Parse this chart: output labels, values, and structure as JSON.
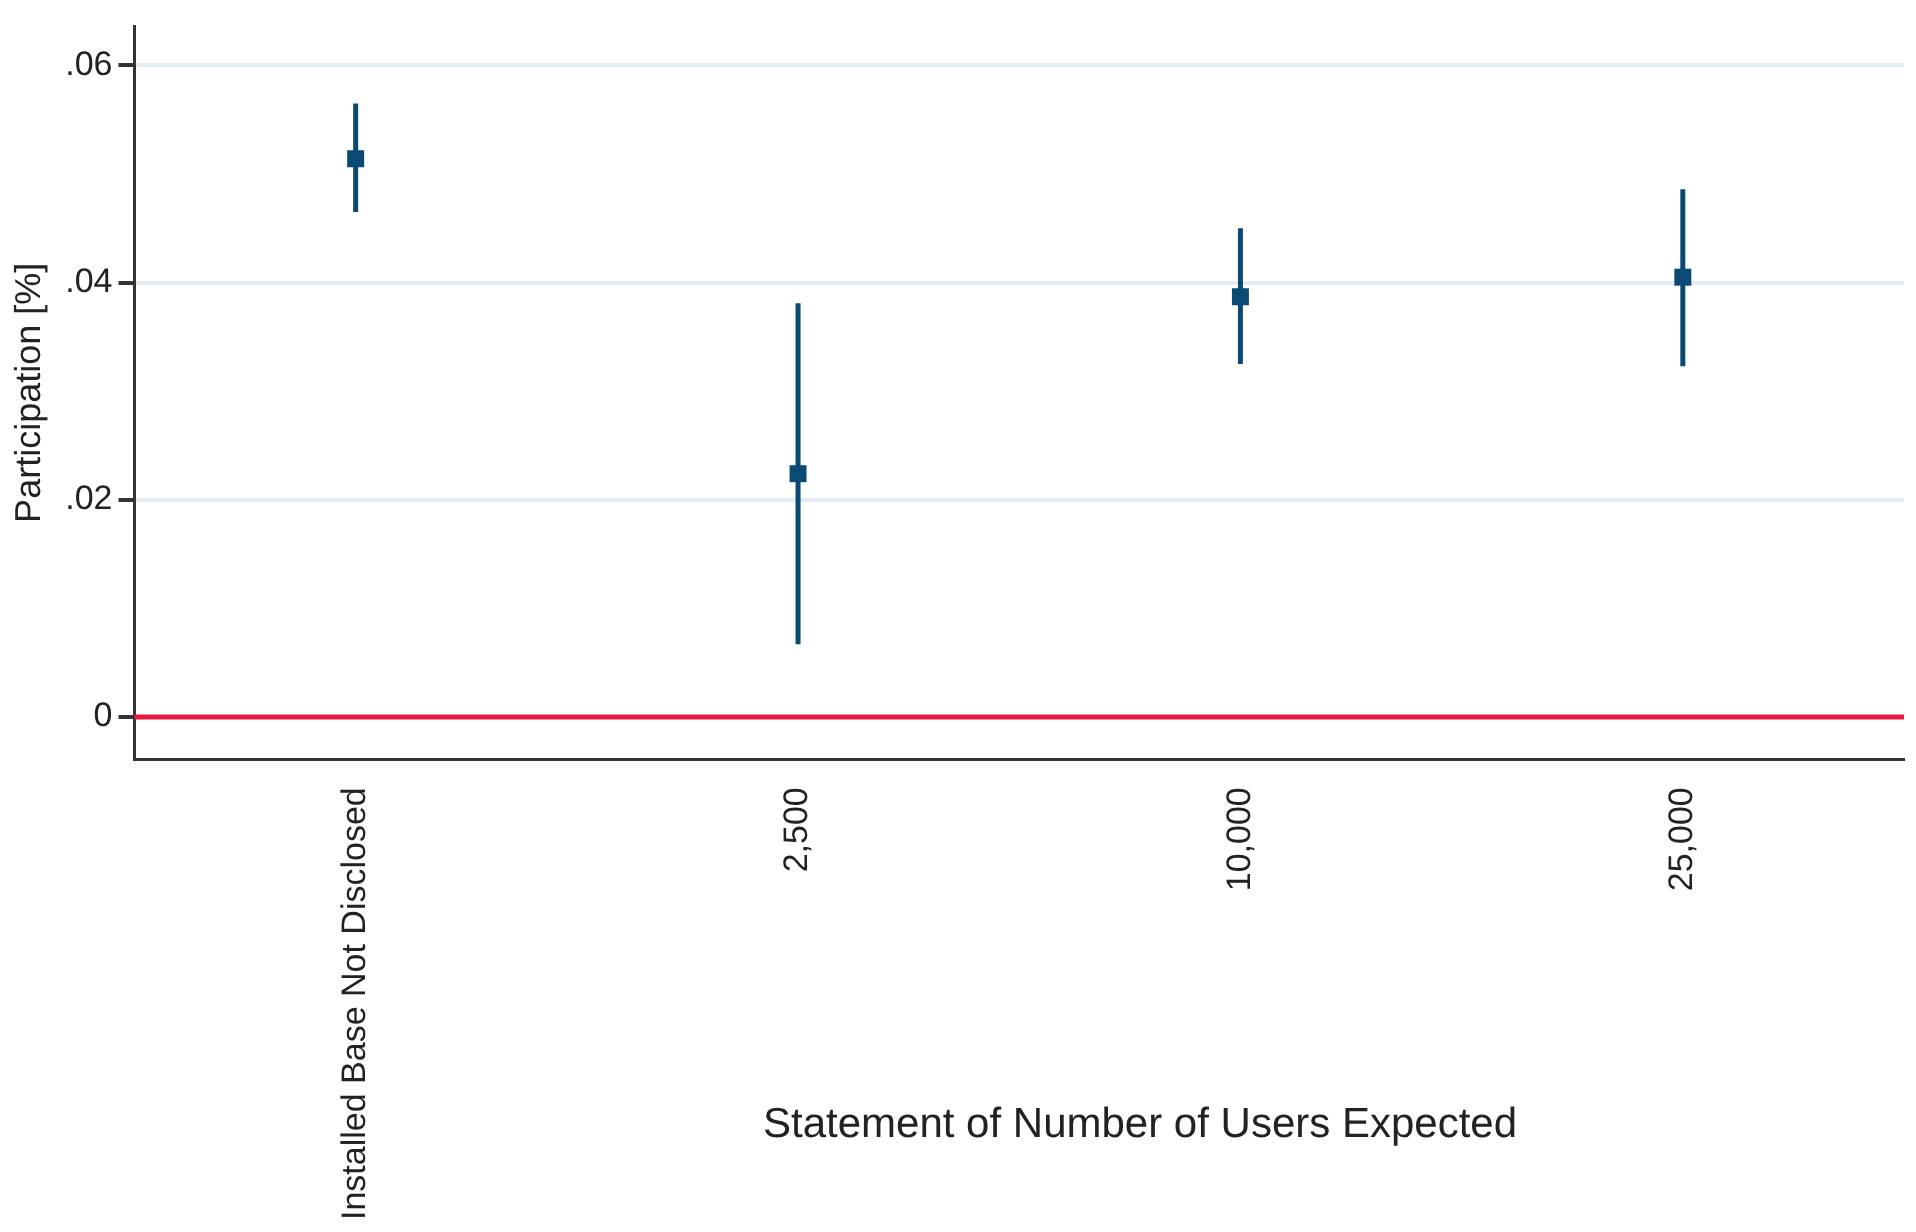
{
  "chart_data": {
    "type": "scatter",
    "xlabel": "Statement of Number of Users Expected",
    "ylabel": "Participation [%]",
    "categories": [
      "Installed Base Not Disclosed",
      "2,500",
      "10,000",
      "25,000"
    ],
    "series": [
      {
        "color": "#0b4a74",
        "values": [
          0.0514,
          0.0224,
          0.0387,
          0.0405
        ],
        "errors": [
          [
            0.0465,
            0.0565
          ],
          [
            0.0067,
            0.0381
          ],
          [
            0.0325,
            0.045
          ],
          [
            0.0323,
            0.0486
          ]
        ]
      }
    ],
    "ylim": [
      -0.0039,
      0.0636
    ],
    "yticks": [
      0,
      {
        "value": 0.02,
        "label": ".02"
      },
      {
        "value": 0.04,
        "label": ".04"
      },
      {
        "value": 0.06,
        "label": ".06"
      }
    ],
    "ref_lines": [
      {
        "axis": "y",
        "value": 0,
        "color": "#e8183f"
      }
    ],
    "grid": "y",
    "marker": "square",
    "legend": false
  }
}
